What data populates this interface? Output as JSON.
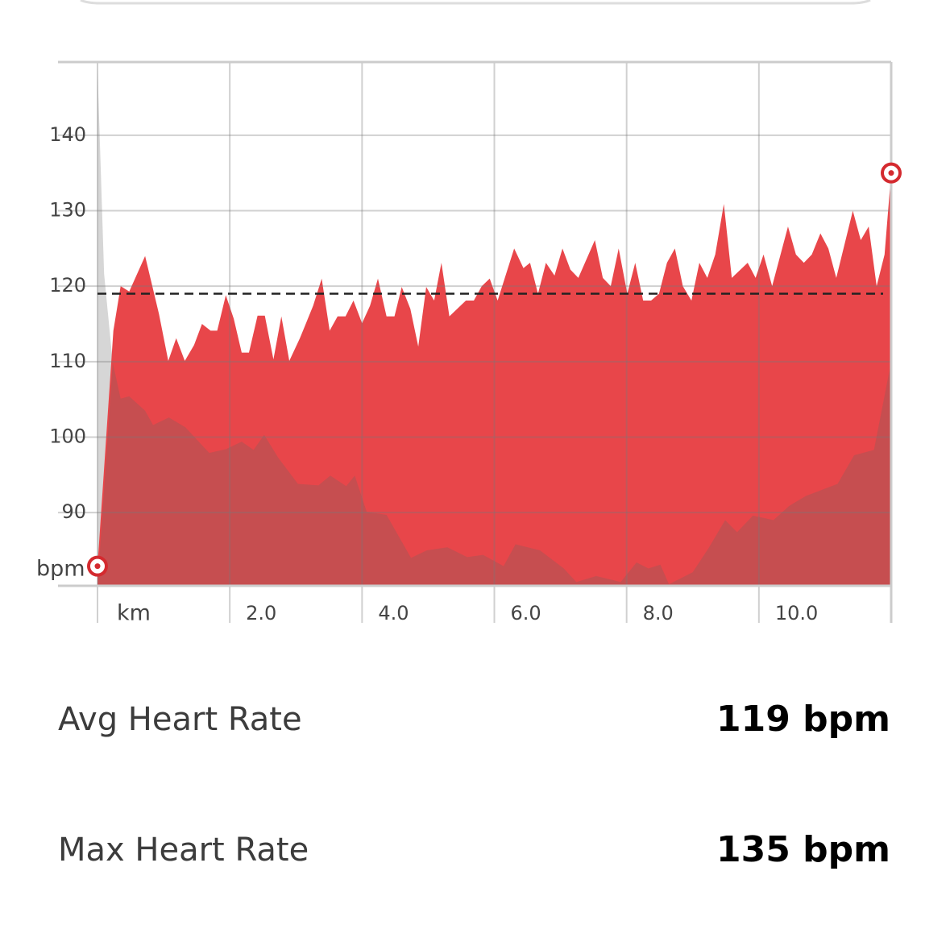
{
  "chart_data": {
    "type": "area",
    "xlim": [
      0,
      12
    ],
    "ylim": [
      80.3,
      149.7
    ],
    "xticks": [
      {
        "value": 0,
        "label": "km"
      },
      {
        "value": 2,
        "label": "2.0"
      },
      {
        "value": 4,
        "label": "4.0"
      },
      {
        "value": 6,
        "label": "6.0"
      },
      {
        "value": 8,
        "label": "8.0"
      },
      {
        "value": 10,
        "label": "10.0"
      }
    ],
    "yticks": [
      90,
      100,
      110,
      120,
      130,
      140
    ],
    "y_label": "bpm",
    "grid": true,
    "avg_line": 119,
    "series": [
      {
        "color": "#d6d6d6",
        "x": [
          0,
          0.1,
          0.23
        ],
        "values": [
          148.9,
          121.6,
          109.9
        ]
      },
      {
        "color": "#e8464a",
        "x": [
          0,
          0.24,
          0.35,
          0.48,
          0.72,
          0.93,
          1.07,
          1.19,
          1.32,
          1.46,
          1.58,
          1.71,
          1.81,
          1.94,
          2.06,
          2.18,
          2.29,
          2.42,
          2.53,
          2.66,
          2.78,
          2.9,
          3.06,
          3.26,
          3.39,
          3.51,
          3.63,
          3.75,
          3.87,
          4.0,
          4.12,
          4.24,
          4.37,
          4.49,
          4.6,
          4.73,
          4.85,
          4.97,
          5.09,
          5.2,
          5.32,
          5.57,
          5.69,
          5.81,
          5.93,
          6.05,
          6.3,
          6.44,
          6.54,
          6.66,
          6.78,
          6.91,
          7.03,
          7.15,
          7.27,
          7.52,
          7.64,
          7.76,
          7.88,
          8.01,
          8.13,
          8.25,
          8.37,
          8.49,
          8.61,
          8.73,
          8.85,
          8.98,
          9.1,
          9.22,
          9.34,
          9.47,
          9.59,
          9.83,
          9.95,
          10.07,
          10.2,
          10.44,
          10.56,
          10.68,
          10.8,
          10.93,
          11.05,
          11.17,
          11.42,
          11.54,
          11.66,
          11.78,
          11.9,
          12
        ],
        "values": [
          82.9,
          114.1,
          120,
          119.3,
          124,
          116.3,
          110.1,
          113.1,
          110.1,
          112.2,
          115,
          114.1,
          114.1,
          118.8,
          115.7,
          111.2,
          111.2,
          116.1,
          116.1,
          110.3,
          116,
          110.1,
          113.1,
          117.4,
          121,
          114.1,
          116,
          116,
          118.1,
          115.1,
          117.4,
          121,
          116,
          116,
          119.9,
          117,
          112,
          119.9,
          118.1,
          123.1,
          116,
          118.1,
          118.1,
          120,
          121,
          118.1,
          125,
          122.4,
          123.1,
          119,
          123.1,
          121.4,
          125,
          122.2,
          121.1,
          126.1,
          121.1,
          120,
          125,
          119,
          123.1,
          118.1,
          118.1,
          119,
          123.1,
          125,
          120,
          118.1,
          123.1,
          121.1,
          124.2,
          130.9,
          121.1,
          123.1,
          121.1,
          124.2,
          120,
          127.9,
          124.2,
          123.1,
          124.2,
          127,
          125,
          121.1,
          130,
          126.1,
          127.9,
          120,
          124.2,
          135
        ]
      },
      {
        "color": "#c64e50",
        "x": [
          0,
          0.23,
          0.35,
          0.48,
          0.72,
          0.84,
          1.08,
          1.33,
          1.69,
          1.94,
          2.18,
          2.36,
          2.52,
          2.73,
          3.03,
          3.34,
          3.52,
          3.76,
          3.89,
          4.07,
          4.37,
          4.74,
          4.98,
          5.29,
          5.59,
          5.83,
          6.14,
          6.32,
          6.69,
          7.05,
          7.24,
          7.54,
          7.91,
          8.15,
          8.33,
          8.51,
          8.64,
          9.0,
          9.24,
          9.49,
          9.67,
          9.91,
          10.22,
          10.46,
          10.71,
          10.95,
          11.19,
          11.44,
          11.74,
          12
        ],
        "values": [
          80.3,
          109.9,
          105.1,
          105.4,
          103.5,
          101.6,
          102.6,
          101.3,
          97.9,
          98.4,
          99.4,
          98.3,
          100.3,
          97.3,
          93.8,
          93.6,
          94.9,
          93.5,
          94.9,
          90.1,
          89.7,
          84,
          85,
          85.4,
          84.1,
          84.4,
          82.9,
          85.8,
          85,
          82.6,
          80.8,
          81.6,
          80.8,
          83.4,
          82.6,
          83.1,
          80.5,
          82.1,
          85.3,
          89,
          87.4,
          89.6,
          89,
          90.9,
          92.2,
          93,
          93.8,
          97.6,
          98.3,
          110
        ]
      }
    ]
  },
  "stats": {
    "rows": [
      {
        "label": "Avg Heart Rate",
        "value": "119 bpm"
      },
      {
        "label": "Max Heart Rate",
        "value": "135 bpm"
      }
    ]
  }
}
